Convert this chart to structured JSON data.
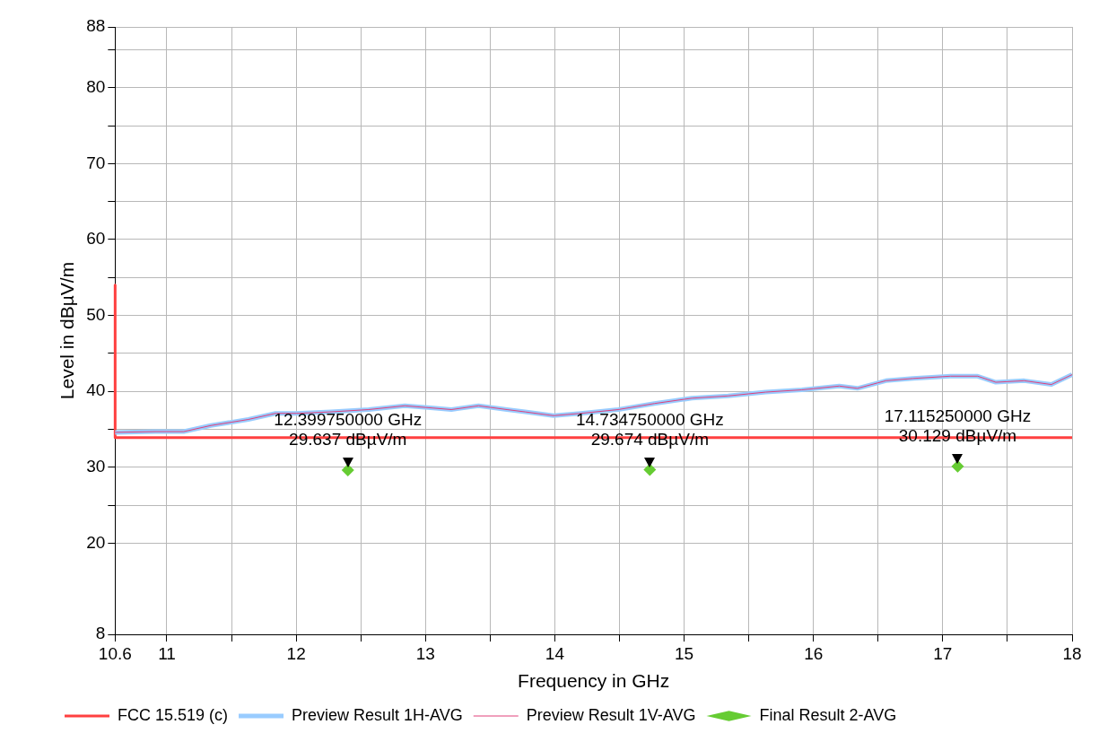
{
  "chart_data": {
    "type": "line",
    "xlabel": "Frequency in GHz",
    "ylabel": "Level in dBµV/m",
    "xlim": [
      10.6,
      18
    ],
    "xticks": [
      10.6,
      11,
      {
        "value": 11.5,
        "label": null
      },
      12,
      {
        "value": 12.5,
        "label": null
      },
      13,
      {
        "value": 13.5,
        "label": null
      },
      14,
      {
        "value": 14.5,
        "label": null
      },
      15,
      {
        "value": 15.5,
        "label": null
      },
      16,
      {
        "value": 16.5,
        "label": null
      },
      17,
      {
        "value": 17.5,
        "label": null
      },
      18
    ],
    "ylim": [
      8,
      88
    ],
    "yticks": [
      8,
      20,
      {
        "value": 25,
        "label": null
      },
      30,
      {
        "value": 35,
        "label": null
      },
      40,
      {
        "value": 45,
        "label": null
      },
      50,
      {
        "value": 55,
        "label": null
      },
      60,
      {
        "value": 65,
        "label": null
      },
      70,
      {
        "value": 75,
        "label": null
      },
      80,
      {
        "value": 85,
        "label": null
      },
      88
    ],
    "grid": true,
    "legend": "bottom",
    "line_style": "solid",
    "series": [
      {
        "name": "FCC 15.519 (c)",
        "color": "#ff4040",
        "type": "line",
        "x": [
          10.6,
          10.6,
          18
        ],
        "values": [
          54,
          33.9,
          33.9
        ]
      },
      {
        "name": "Preview Result 1H-AVG",
        "color": "#99ccff",
        "type": "line",
        "x": [
          10.6,
          10.91,
          11.13,
          11.34,
          11.63,
          11.84,
          12.0,
          12.27,
          12.56,
          12.84,
          13.06,
          13.2,
          13.41,
          13.63,
          13.77,
          13.99,
          14.2,
          14.49,
          14.77,
          15.06,
          15.34,
          15.63,
          15.91,
          16.2,
          16.34,
          16.56,
          16.77,
          17.06,
          17.27,
          17.41,
          17.63,
          17.84,
          18
        ],
        "values": [
          34.6,
          34.7,
          34.7,
          35.5,
          36.3,
          37.1,
          37.1,
          37.3,
          37.6,
          38.1,
          37.8,
          37.6,
          38.1,
          37.6,
          37.3,
          36.8,
          37.1,
          37.6,
          38.4,
          39.1,
          39.4,
          39.9,
          40.2,
          40.7,
          40.4,
          41.4,
          41.7,
          42.0,
          42.0,
          41.2,
          41.4,
          40.9,
          42.2
        ]
      },
      {
        "name": "Preview Result 1V-AVG",
        "color": "#e0407a",
        "type": "line",
        "x": [
          10.6,
          10.91,
          11.13,
          11.34,
          11.63,
          11.84,
          12.0,
          12.27,
          12.56,
          12.84,
          13.06,
          13.2,
          13.41,
          13.63,
          13.77,
          13.99,
          14.2,
          14.49,
          14.77,
          15.06,
          15.34,
          15.63,
          15.91,
          16.2,
          16.34,
          16.56,
          16.77,
          17.06,
          17.27,
          17.41,
          17.63,
          17.84,
          18
        ],
        "values": [
          34.6,
          34.7,
          34.7,
          35.5,
          36.3,
          37.1,
          37.1,
          37.3,
          37.6,
          38.1,
          37.8,
          37.6,
          38.1,
          37.6,
          37.3,
          36.8,
          37.1,
          37.6,
          38.4,
          39.1,
          39.4,
          39.9,
          40.2,
          40.7,
          40.4,
          41.4,
          41.7,
          42.0,
          42.0,
          41.2,
          41.4,
          40.9,
          42.2
        ]
      },
      {
        "name": "Final Result 2-AVG",
        "color": "#66cc33",
        "type": "scatter",
        "marker": "diamond",
        "x": [
          12.39975,
          14.73475,
          17.11525
        ],
        "values": [
          29.637,
          29.674,
          30.129
        ]
      }
    ],
    "annotations": [
      {
        "text": "12.399750000 GHz\n29.637 dBµV/m",
        "x": 12.39975,
        "y": 29.637
      },
      {
        "text": "14.734750000 GHz\n29.674 dBµV/m",
        "x": 14.73475,
        "y": 29.674
      },
      {
        "text": "17.115250000 GHz\n30.129 dBµV/m",
        "x": 17.11525,
        "y": 30.129
      }
    ]
  }
}
